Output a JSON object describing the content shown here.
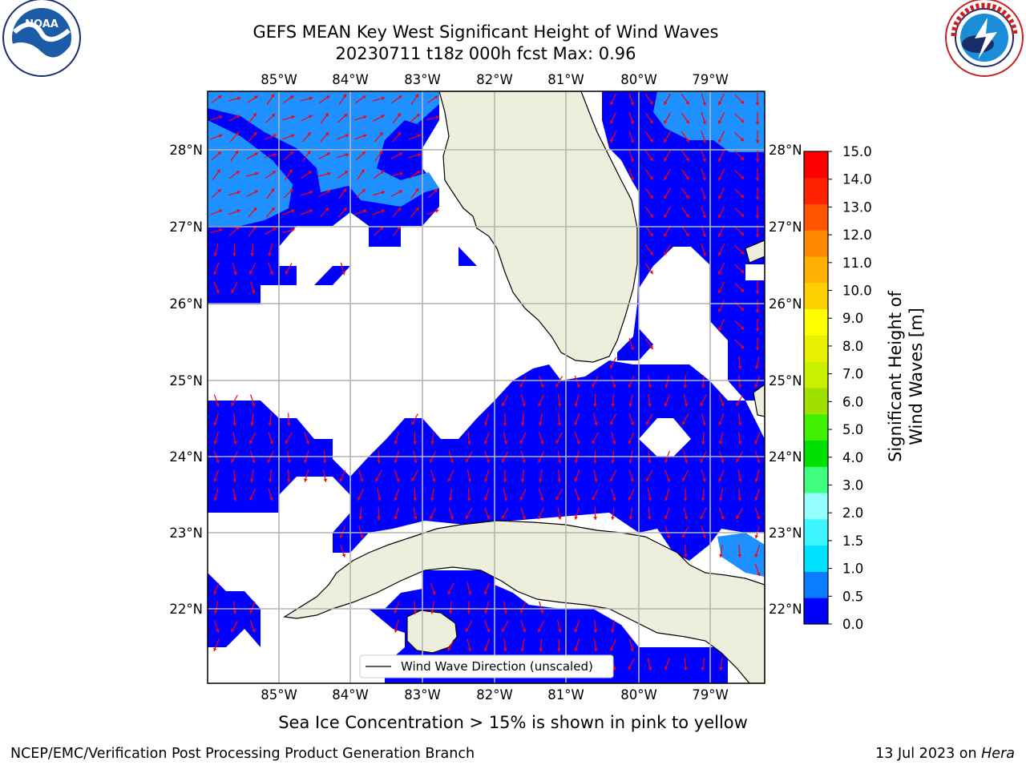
{
  "title": {
    "line1": "GEFS MEAN Key West Significant Height of Wind Waves",
    "line2": "20230711 t18z 000h fcst   Max: 0.96"
  },
  "map": {
    "top_lon_labels": [
      "85°W",
      "84°W",
      "83°W",
      "82°W",
      "81°W",
      "80°W",
      "79°W"
    ],
    "bottom_lon_labels": [
      "85°W",
      "84°W",
      "83°W",
      "82°W",
      "81°W",
      "80°W",
      "79°W"
    ],
    "left_lat_labels": [
      "28°N",
      "27°N",
      "26°N",
      "25°N",
      "24°N",
      "23°N",
      "22°N"
    ],
    "right_lat_labels": [
      "28°N",
      "27°N",
      "26°N",
      "25°N",
      "24°N",
      "23°N",
      "22°N"
    ],
    "legend_label": "Wind Wave Direction (unscaled)",
    "colors": {
      "land": "#eeeedc",
      "wave_low": "#0000ff",
      "wave_mid": "#1e90ff",
      "arrow": "#ff0000",
      "grid": "#b4b4b4"
    }
  },
  "colorbar": {
    "title": "Significant Height of Wind Waves [m]",
    "ticks": [
      "0.0",
      "0.5",
      "1.0",
      "1.5",
      "2.0",
      "3.0",
      "4.0",
      "5.0",
      "6.0",
      "7.0",
      "8.0",
      "9.0",
      "10.0",
      "11.0",
      "12.0",
      "13.0",
      "14.0",
      "15.0"
    ],
    "colors": [
      "#0000ff",
      "#0a7cff",
      "#00e1ff",
      "#3cf5ff",
      "#96ffff",
      "#40ff80",
      "#00e000",
      "#40f000",
      "#a0e000",
      "#c8f000",
      "#e8f000",
      "#ffff00",
      "#ffd000",
      "#ffb000",
      "#ff8800",
      "#ff5500",
      "#ff2200",
      "#ff0000"
    ]
  },
  "icons": {
    "left_logo": "noaa-logo-icon",
    "right_logo": "nws-logo-icon"
  },
  "footer": {
    "note": "Sea Ice Concentration > 15% is shown in pink to yellow",
    "left": "NCEP/EMC/Verification Post Processing Product Generation Branch",
    "right_date": "13 Jul 2023 on ",
    "right_host": "Hera"
  }
}
